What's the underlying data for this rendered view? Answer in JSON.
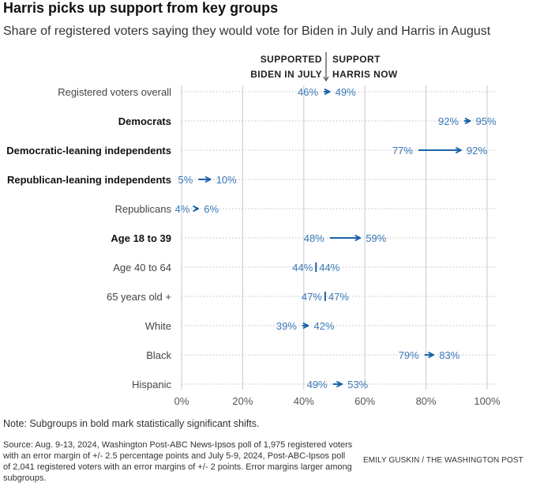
{
  "title": "Harris picks up support from key groups",
  "subtitle": "Share of registered voters saying they would vote for Biden in July and Harris in August",
  "header_left": [
    "SUPPORTED",
    "BIDEN IN JULY"
  ],
  "header_right": [
    "SUPPORT",
    "HARRIS NOW"
  ],
  "note": "Note: Subgroups in bold mark statistically significant shifts.",
  "source": "Source: Aug. 9-13, 2024, Washington Post-ABC News-Ipsos poll of 1,975 registered voters with an error margin of +/- 2.5 percentage points and July 5-9, 2024, Post-ABC-Ipsos poll of 2,041 registered voters with an error margins of +/- 2 points. Error margins larger among subgroups.",
  "credit": "EMILY GUSKIN / THE WASHINGTON POST",
  "colors": {
    "accent": "#1b62a8",
    "label_blue": "#3a78b8",
    "grid": "#c9c9c9",
    "axis_text": "#555555"
  },
  "chart_data": {
    "type": "dumbbell-arrow",
    "xlim": [
      0,
      100
    ],
    "xticks": [
      "0%",
      "20%",
      "40%",
      "60%",
      "80%",
      "100%"
    ],
    "xtick_values": [
      0,
      20,
      40,
      60,
      80,
      100
    ],
    "series": [
      {
        "name": "Supported Biden in July"
      },
      {
        "name": "Support Harris now"
      }
    ],
    "rows": [
      {
        "label": "Registered voters overall",
        "bold": false,
        "biden": 46,
        "harris": 49,
        "biden_label": "46%",
        "harris_label": "49%"
      },
      {
        "label": "Democrats",
        "bold": true,
        "biden": 92,
        "harris": 95,
        "biden_label": "92%",
        "harris_label": "95%"
      },
      {
        "label": "Democratic-leaning independents",
        "bold": true,
        "biden": 77,
        "harris": 92,
        "biden_label": "77%",
        "harris_label": "92%"
      },
      {
        "label": "Republican-leaning independents",
        "bold": true,
        "biden": 5,
        "harris": 10,
        "biden_label": "5%",
        "harris_label": "10%"
      },
      {
        "label": "Republicans",
        "bold": false,
        "biden": 4,
        "harris": 6,
        "biden_label": "4%",
        "harris_label": "6%"
      },
      {
        "label": "Age 18 to 39",
        "bold": true,
        "biden": 48,
        "harris": 59,
        "biden_label": "48%",
        "harris_label": "59%"
      },
      {
        "label": "Age 40 to 64",
        "bold": false,
        "biden": 44,
        "harris": 44,
        "biden_label": "44%",
        "harris_label": "44%"
      },
      {
        "label": "65 years old +",
        "bold": false,
        "biden": 47,
        "harris": 47,
        "biden_label": "47%",
        "harris_label": "47%"
      },
      {
        "label": "White",
        "bold": false,
        "biden": 39,
        "harris": 42,
        "biden_label": "39%",
        "harris_label": "42%"
      },
      {
        "label": "Black",
        "bold": false,
        "biden": 79,
        "harris": 83,
        "biden_label": "79%",
        "harris_label": "83%"
      },
      {
        "label": "Hispanic",
        "bold": false,
        "biden": 49,
        "harris": 53,
        "biden_label": "49%",
        "harris_label": "53%"
      }
    ]
  }
}
